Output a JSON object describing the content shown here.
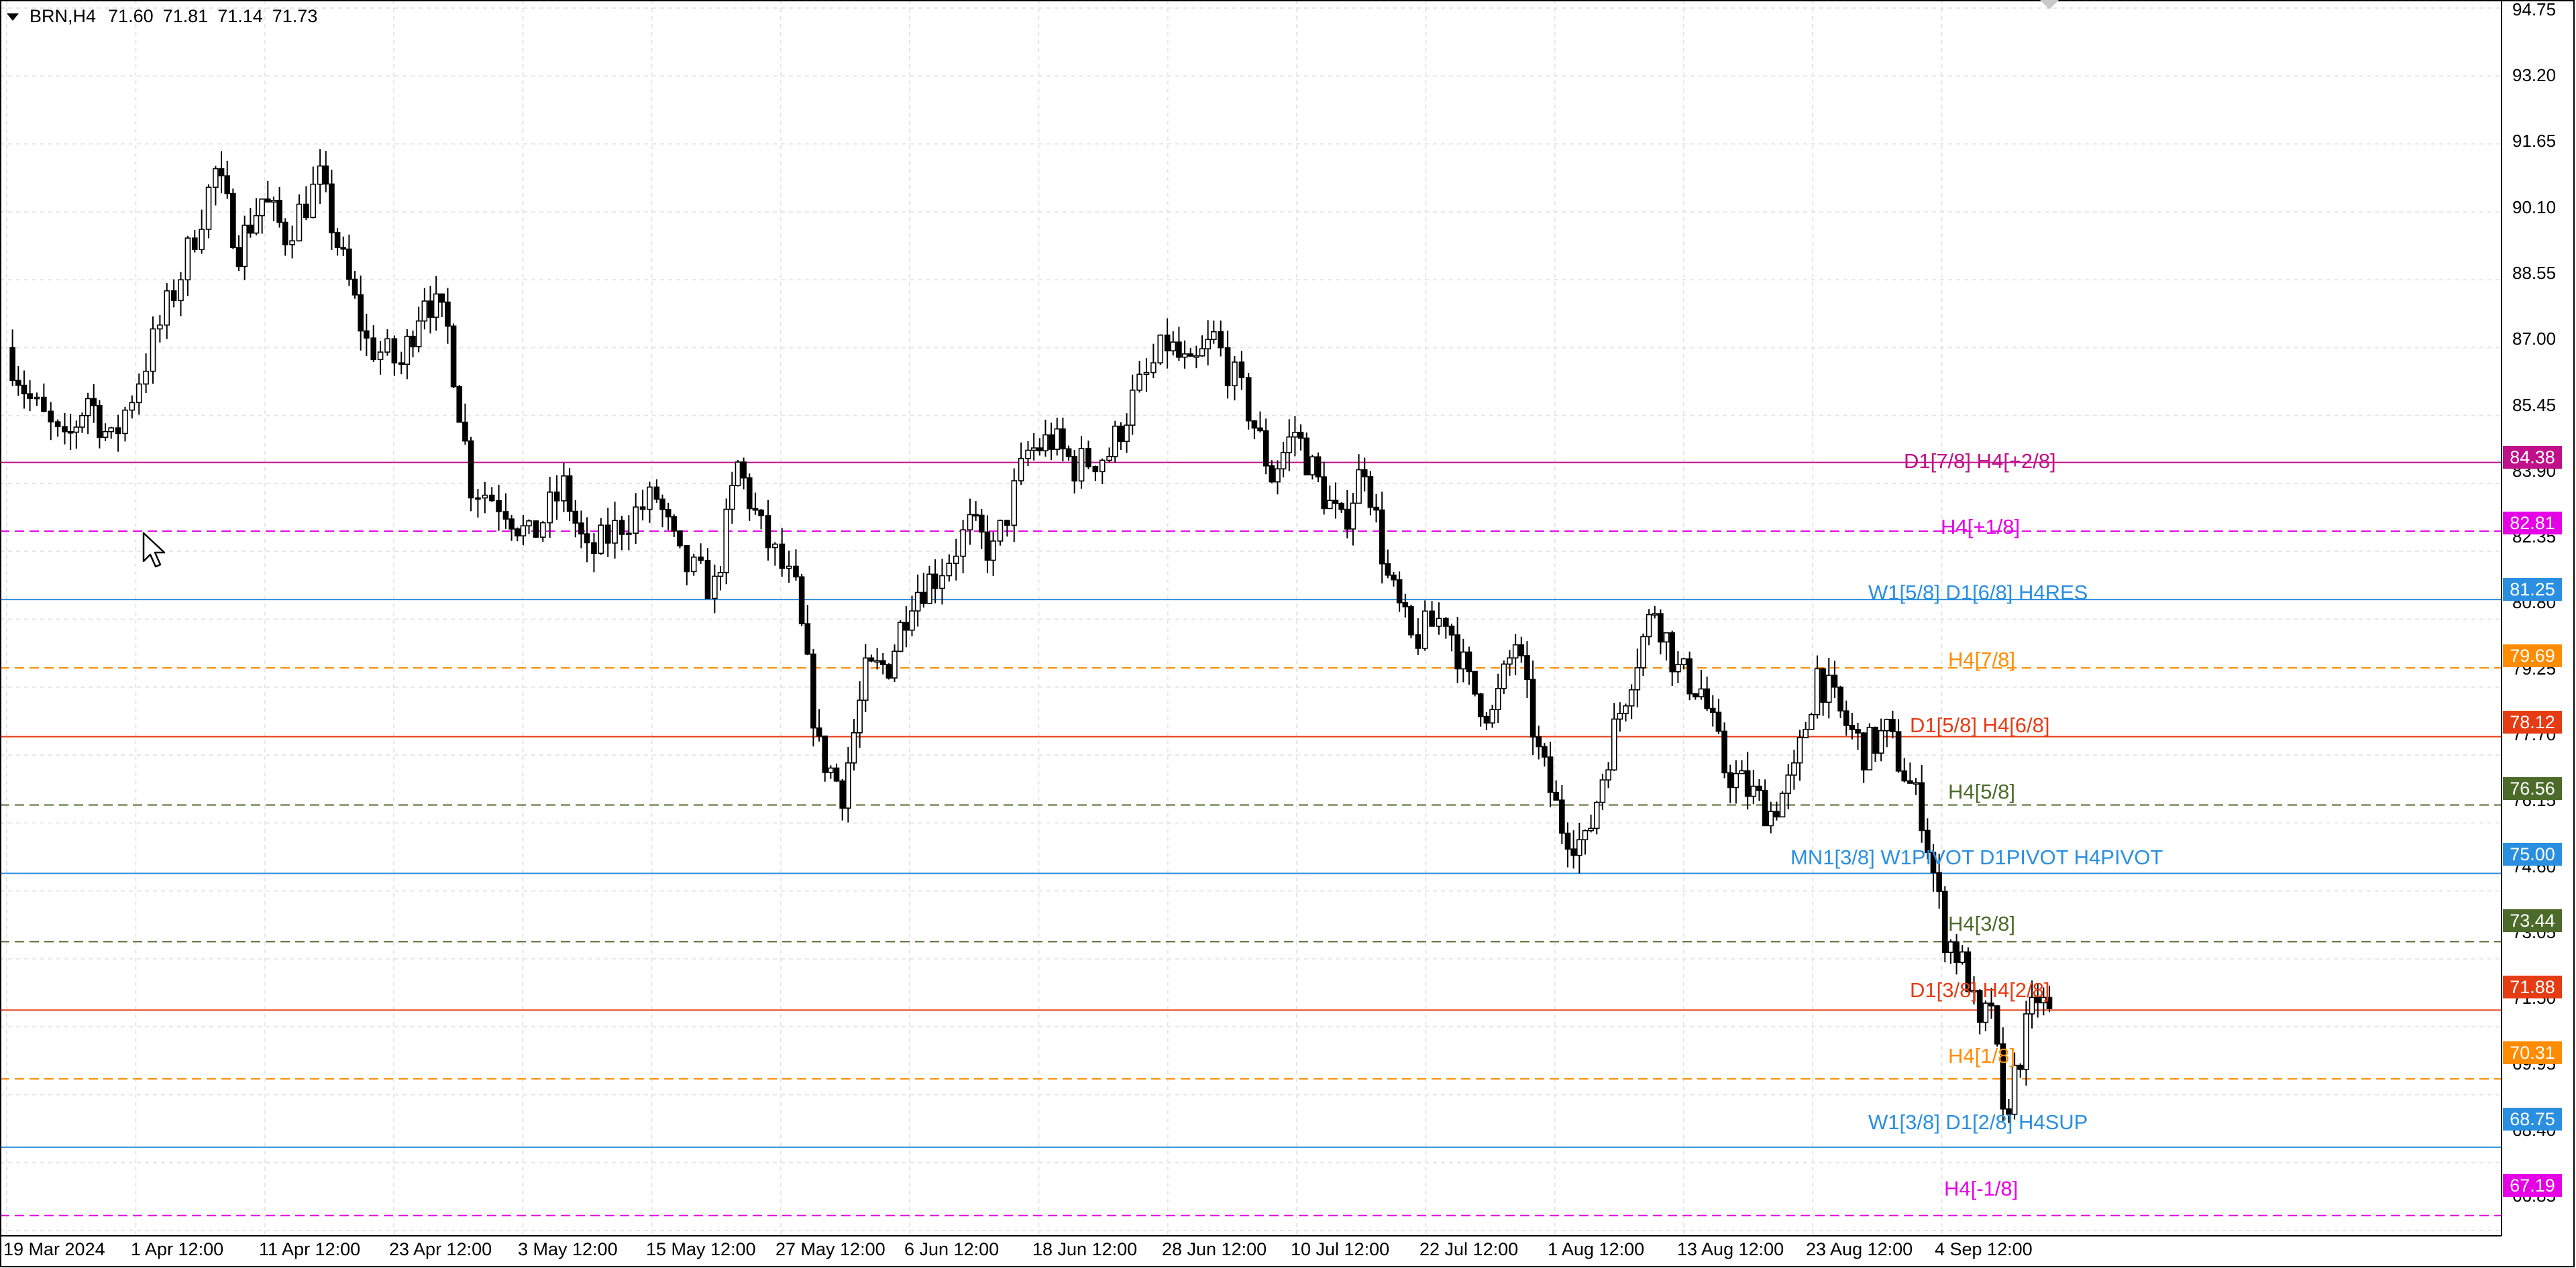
{
  "chart_header": {
    "symbol": "BRN,H4",
    "open": "71.60",
    "high": "71.81",
    "low": "71.14",
    "close": "71.73"
  },
  "colors": {
    "background": "#ffffff",
    "grid": "#e6e6e6",
    "candle": "#000000",
    "magenta": "#e600e6",
    "pink": "#c0108a",
    "blue": "#2a8fe0",
    "orange": "#ff8c00",
    "red": "#e63c14",
    "olive": "#4c6b2a"
  },
  "price_axis": {
    "labels": [
      "94.75",
      "93.20",
      "91.65",
      "90.10",
      "88.55",
      "87.00",
      "85.45",
      "83.90",
      "82.35",
      "80.80",
      "79.25",
      "77.70",
      "76.15",
      "74.60",
      "73.05",
      "71.50",
      "69.95",
      "68.40",
      "66.85"
    ]
  },
  "time_axis": {
    "labels": [
      "19 Mar 2024",
      "1 Apr 12:00",
      "11 Apr 12:00",
      "23 Apr 12:00",
      "3 May 12:00",
      "15 May 12:00",
      "27 May 12:00",
      "6 Jun 12:00",
      "18 Jun 12:00",
      "28 Jun 12:00",
      "10 Jul 12:00",
      "22 Jul 12:00",
      "1 Aug 12:00",
      "13 Aug 12:00",
      "23 Aug 12:00",
      "4 Sep 12:00"
    ]
  },
  "levels": [
    {
      "price": "84.38",
      "label": "D1[7/8] H4[+2/8]",
      "color": "#c0108a",
      "style": "solid"
    },
    {
      "price": "82.81",
      "label": "H4[+1/8]",
      "color": "#e600e6",
      "style": "dashed"
    },
    {
      "price": "81.25",
      "label": "W1[5/8] D1[6/8] H4RES",
      "color": "#2a8fe0",
      "style": "solid"
    },
    {
      "price": "79.69",
      "label": "H4[7/8]",
      "color": "#ff8c00",
      "style": "dashed"
    },
    {
      "price": "78.12",
      "label": "D1[5/8] H4[6/8]",
      "color": "#e63c14",
      "style": "solid"
    },
    {
      "price": "76.56",
      "label": "H4[5/8]",
      "color": "#4c6b2a",
      "style": "dashed"
    },
    {
      "price": "75.00",
      "label": "MN1[3/8] W1PIVOT D1PIVOT H4PIVOT",
      "color": "#2a8fe0",
      "style": "solid"
    },
    {
      "price": "73.44",
      "label": "H4[3/8]",
      "color": "#4c6b2a",
      "style": "dashed"
    },
    {
      "price": "71.88",
      "label": "D1[3/8] H4[2/8]",
      "color": "#e63c14",
      "style": "solid"
    },
    {
      "price": "70.31",
      "label": "H4[1/8]",
      "color": "#ff8c00",
      "style": "dashed"
    },
    {
      "price": "68.75",
      "label": "W1[3/8] D1[2/8] H4SUP",
      "color": "#2a8fe0",
      "style": "solid"
    },
    {
      "price": "67.19",
      "label": "H4[-1/8]",
      "color": "#e600e6",
      "style": "dashed"
    }
  ],
  "chart_data": {
    "type": "candlestick",
    "symbol": "BRN",
    "timeframe": "H4",
    "price_range": [
      66.85,
      94.75
    ],
    "grid": true,
    "path": [
      {
        "date": "2024-03-19",
        "price": 87.0
      },
      {
        "date": "2024-03-21",
        "price": 85.8
      },
      {
        "date": "2024-03-24",
        "price": 84.7
      },
      {
        "date": "2024-03-26",
        "price": 85.9
      },
      {
        "date": "2024-03-28",
        "price": 84.8
      },
      {
        "date": "2024-03-31",
        "price": 86.7
      },
      {
        "date": "2024-04-03",
        "price": 88.7
      },
      {
        "date": "2024-04-06",
        "price": 91.0
      },
      {
        "date": "2024-04-08",
        "price": 89.3
      },
      {
        "date": "2024-04-10",
        "price": 90.4
      },
      {
        "date": "2024-04-12",
        "price": 89.6
      },
      {
        "date": "2024-04-15",
        "price": 90.8
      },
      {
        "date": "2024-04-17",
        "price": 88.9
      },
      {
        "date": "2024-04-19",
        "price": 87.1
      },
      {
        "date": "2024-04-22",
        "price": 86.6
      },
      {
        "date": "2024-04-24",
        "price": 88.3
      },
      {
        "date": "2024-04-26",
        "price": 87.4
      },
      {
        "date": "2024-04-28",
        "price": 83.9
      },
      {
        "date": "2024-05-01",
        "price": 83.4
      },
      {
        "date": "2024-05-03",
        "price": 82.6
      },
      {
        "date": "2024-05-06",
        "price": 83.8
      },
      {
        "date": "2024-05-08",
        "price": 82.2
      },
      {
        "date": "2024-05-11",
        "price": 83.0
      },
      {
        "date": "2024-05-14",
        "price": 83.6
      },
      {
        "date": "2024-05-16",
        "price": 82.1
      },
      {
        "date": "2024-05-19",
        "price": 81.5
      },
      {
        "date": "2024-05-21",
        "price": 84.3
      },
      {
        "date": "2024-05-23",
        "price": 82.8
      },
      {
        "date": "2024-05-26",
        "price": 81.4
      },
      {
        "date": "2024-05-28",
        "price": 77.8
      },
      {
        "date": "2024-05-30",
        "price": 76.9
      },
      {
        "date": "2024-06-01",
        "price": 79.5
      },
      {
        "date": "2024-06-03",
        "price": 79.8
      },
      {
        "date": "2024-06-05",
        "price": 81.4
      },
      {
        "date": "2024-06-07",
        "price": 81.8
      },
      {
        "date": "2024-06-10",
        "price": 82.9
      },
      {
        "date": "2024-06-12",
        "price": 82.3
      },
      {
        "date": "2024-06-15",
        "price": 84.6
      },
      {
        "date": "2024-06-17",
        "price": 84.9
      },
      {
        "date": "2024-06-19",
        "price": 84.3
      },
      {
        "date": "2024-06-22",
        "price": 84.6
      },
      {
        "date": "2024-06-24",
        "price": 85.8
      },
      {
        "date": "2024-06-27",
        "price": 87.1
      },
      {
        "date": "2024-06-29",
        "price": 86.4
      },
      {
        "date": "2024-07-01",
        "price": 87.2
      },
      {
        "date": "2024-07-04",
        "price": 85.6
      },
      {
        "date": "2024-07-06",
        "price": 84.1
      },
      {
        "date": "2024-07-08",
        "price": 85.1
      },
      {
        "date": "2024-07-10",
        "price": 83.9
      },
      {
        "date": "2024-07-12",
        "price": 82.9
      },
      {
        "date": "2024-07-14",
        "price": 84.4
      },
      {
        "date": "2024-07-16",
        "price": 81.7
      },
      {
        "date": "2024-07-18",
        "price": 80.3
      },
      {
        "date": "2024-07-21",
        "price": 80.9
      },
      {
        "date": "2024-07-23",
        "price": 79.3
      },
      {
        "date": "2024-07-25",
        "price": 78.6
      },
      {
        "date": "2024-07-27",
        "price": 80.3
      },
      {
        "date": "2024-07-29",
        "price": 77.7
      },
      {
        "date": "2024-07-31",
        "price": 76.1
      },
      {
        "date": "2024-08-02",
        "price": 75.6
      },
      {
        "date": "2024-08-04",
        "price": 77.8
      },
      {
        "date": "2024-08-06",
        "price": 79.6
      },
      {
        "date": "2024-08-08",
        "price": 81.1
      },
      {
        "date": "2024-08-10",
        "price": 79.6
      },
      {
        "date": "2024-08-12",
        "price": 79.2
      },
      {
        "date": "2024-08-14",
        "price": 77.4
      },
      {
        "date": "2024-08-16",
        "price": 76.9
      },
      {
        "date": "2024-08-18",
        "price": 76.4
      },
      {
        "date": "2024-08-20",
        "price": 77.2
      },
      {
        "date": "2024-08-22",
        "price": 79.6
      },
      {
        "date": "2024-08-24",
        "price": 78.6
      },
      {
        "date": "2024-08-26",
        "price": 77.8
      },
      {
        "date": "2024-08-28",
        "price": 78.2
      },
      {
        "date": "2024-08-30",
        "price": 77.0
      },
      {
        "date": "2024-08-31",
        "price": 76.4
      },
      {
        "date": "2024-09-02",
        "price": 73.6
      },
      {
        "date": "2024-09-03",
        "price": 73.2
      },
      {
        "date": "2024-09-04",
        "price": 72.6
      },
      {
        "date": "2024-09-05",
        "price": 71.3
      },
      {
        "date": "2024-09-06",
        "price": 72.1
      },
      {
        "date": "2024-09-07",
        "price": 69.3
      },
      {
        "date": "2024-09-08",
        "price": 70.4
      },
      {
        "date": "2024-09-09",
        "price": 71.4
      },
      {
        "date": "2024-09-10",
        "price": 72.2
      },
      {
        "date": "2024-09-11",
        "price": 71.73
      }
    ]
  }
}
